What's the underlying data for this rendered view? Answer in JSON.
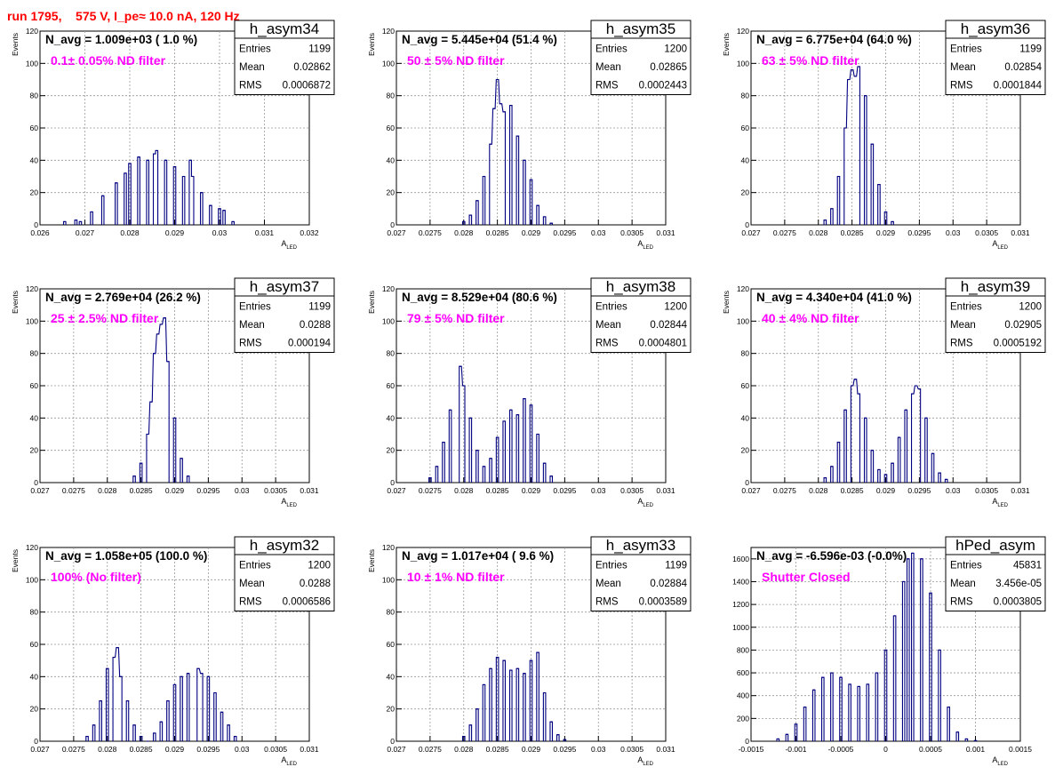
{
  "title": "run 1795,    575 V, I_pe≈ 10.0 nA, 120 Hz",
  "chart_data": [
    {
      "type": "bar",
      "name": "h_asym34",
      "stats": {
        "entries": "1199",
        "mean": "0.02862",
        "rms": "0.0006872"
      },
      "navg_text": "N_avg = 1.009e+03 ( 1.0 %)",
      "note": "0.1± 0.05% ND filter",
      "xlabel": "A_LED",
      "ylabel": "Events",
      "xlim": [
        0.026,
        0.032
      ],
      "ylim": [
        0,
        120
      ],
      "xticks": [
        0.026,
        0.027,
        0.028,
        0.029,
        0.03,
        0.031,
        0.032
      ],
      "xticklabels": [
        "0.026",
        "0.027",
        "0.028",
        "0.029",
        "0.03",
        "0.031",
        "0.032"
      ],
      "yticks": [
        0,
        20,
        40,
        60,
        80,
        100,
        120
      ],
      "bins": [
        [
          0.02655,
          2
        ],
        [
          0.0268,
          3
        ],
        [
          0.0269,
          2
        ],
        [
          0.02715,
          8
        ],
        [
          0.0274,
          18
        ],
        [
          0.0277,
          26
        ],
        [
          0.0279,
          32
        ],
        [
          0.028,
          38
        ],
        [
          0.0282,
          42
        ],
        [
          0.0284,
          40
        ],
        [
          0.02855,
          44
        ],
        [
          0.0286,
          46
        ],
        [
          0.0288,
          40
        ],
        [
          0.029,
          36
        ],
        [
          0.0292,
          30
        ],
        [
          0.02935,
          40
        ],
        [
          0.0294,
          30
        ],
        [
          0.0296,
          20
        ],
        [
          0.0298,
          12
        ],
        [
          0.03,
          10
        ],
        [
          0.0301,
          9
        ],
        [
          0.0303,
          2
        ]
      ]
    },
    {
      "type": "bar",
      "name": "h_asym35",
      "stats": {
        "entries": "1200",
        "mean": "0.02865",
        "rms": "0.0002443"
      },
      "navg_text": "N_avg = 5.445e+04 (51.4 %)",
      "note": "50 ± 5% ND filter",
      "xlabel": "A_LED",
      "ylabel": "Events",
      "xlim": [
        0.027,
        0.031
      ],
      "ylim": [
        0,
        120
      ],
      "xticks": [
        0.027,
        0.0275,
        0.028,
        0.0285,
        0.029,
        0.0295,
        0.03,
        0.0305,
        0.031
      ],
      "xticklabels": [
        "0.027",
        "0.0275",
        "0.028",
        "0.0285",
        "0.029",
        "0.0295",
        "0.03",
        "0.0305",
        "0.031"
      ],
      "yticks": [
        0,
        20,
        40,
        60,
        80,
        100,
        120
      ],
      "bins": [
        [
          0.028,
          2
        ],
        [
          0.0281,
          6
        ],
        [
          0.0282,
          15
        ],
        [
          0.0283,
          30
        ],
        [
          0.0284,
          50
        ],
        [
          0.02845,
          72
        ],
        [
          0.0285,
          90
        ],
        [
          0.02855,
          75
        ],
        [
          0.0286,
          70
        ],
        [
          0.0287,
          74
        ],
        [
          0.0288,
          55
        ],
        [
          0.0289,
          40
        ],
        [
          0.029,
          28
        ],
        [
          0.0291,
          12
        ],
        [
          0.0292,
          5
        ],
        [
          0.0293,
          1
        ]
      ]
    },
    {
      "type": "bar",
      "name": "h_asym36",
      "stats": {
        "entries": "1199",
        "mean": "0.02854",
        "rms": "0.0001844"
      },
      "navg_text": "N_avg = 6.775e+04 (64.0 %)",
      "note": "63 ± 5% ND filter",
      "xlabel": "A_LED",
      "ylabel": "Events",
      "xlim": [
        0.027,
        0.031
      ],
      "ylim": [
        0,
        120
      ],
      "xticks": [
        0.027,
        0.0275,
        0.028,
        0.0285,
        0.029,
        0.0295,
        0.03,
        0.0305,
        0.031
      ],
      "xticklabels": [
        "0.027",
        "0.0275",
        "0.028",
        "0.0285",
        "0.029",
        "0.0295",
        "0.03",
        "0.0305",
        "0.031"
      ],
      "yticks": [
        0,
        20,
        40,
        60,
        80,
        100,
        120
      ],
      "bins": [
        [
          0.0281,
          3
        ],
        [
          0.0282,
          10
        ],
        [
          0.0283,
          30
        ],
        [
          0.0284,
          60
        ],
        [
          0.02845,
          90
        ],
        [
          0.0285,
          96
        ],
        [
          0.02855,
          92
        ],
        [
          0.0286,
          98
        ],
        [
          0.0287,
          80
        ],
        [
          0.0288,
          50
        ],
        [
          0.0289,
          25
        ],
        [
          0.029,
          8
        ],
        [
          0.0291,
          2
        ]
      ]
    },
    {
      "type": "bar",
      "name": "h_asym37",
      "stats": {
        "entries": "1199",
        "mean": "0.0288",
        "rms": "0.000194"
      },
      "navg_text": "N_avg = 2.769e+04 (26.2 %)",
      "note": "25 ± 2.5% ND filter",
      "xlabel": "A_LED",
      "ylabel": "Events",
      "xlim": [
        0.027,
        0.031
      ],
      "ylim": [
        0,
        120
      ],
      "xticks": [
        0.027,
        0.0275,
        0.028,
        0.0285,
        0.029,
        0.0295,
        0.03,
        0.0305,
        0.031
      ],
      "xticklabels": [
        "0.027",
        "0.0275",
        "0.028",
        "0.0285",
        "0.029",
        "0.0295",
        "0.03",
        "0.0305",
        "0.031"
      ],
      "yticks": [
        0,
        20,
        40,
        60,
        80,
        100,
        120
      ],
      "bins": [
        [
          0.0284,
          4
        ],
        [
          0.0285,
          12
        ],
        [
          0.0286,
          30
        ],
        [
          0.02865,
          50
        ],
        [
          0.0287,
          80
        ],
        [
          0.02875,
          92
        ],
        [
          0.0288,
          98
        ],
        [
          0.02885,
          102
        ],
        [
          0.0289,
          75
        ],
        [
          0.029,
          40
        ],
        [
          0.0291,
          15
        ],
        [
          0.0292,
          4
        ]
      ]
    },
    {
      "type": "bar",
      "name": "h_asym38",
      "stats": {
        "entries": "1200",
        "mean": "0.02844",
        "rms": "0.0004801"
      },
      "navg_text": "N_avg = 8.529e+04 (80.6 %)",
      "note": "79 ± 5% ND filter",
      "xlabel": "A_LED",
      "ylabel": "Events",
      "xlim": [
        0.027,
        0.031
      ],
      "ylim": [
        0,
        120
      ],
      "xticks": [
        0.027,
        0.0275,
        0.028,
        0.0285,
        0.029,
        0.0295,
        0.03,
        0.0305,
        0.031
      ],
      "xticklabels": [
        "0.027",
        "0.0275",
        "0.028",
        "0.0285",
        "0.029",
        "0.0295",
        "0.03",
        "0.0305",
        "0.031"
      ],
      "yticks": [
        0,
        20,
        40,
        60,
        80,
        100,
        120
      ],
      "bins": [
        [
          0.0275,
          3
        ],
        [
          0.0276,
          10
        ],
        [
          0.0277,
          25
        ],
        [
          0.0278,
          45
        ],
        [
          0.02795,
          72
        ],
        [
          0.028,
          60
        ],
        [
          0.0281,
          40
        ],
        [
          0.0282,
          20
        ],
        [
          0.0283,
          10
        ],
        [
          0.0284,
          15
        ],
        [
          0.0285,
          28
        ],
        [
          0.0286,
          38
        ],
        [
          0.0287,
          45
        ],
        [
          0.0288,
          42
        ],
        [
          0.0289,
          52
        ],
        [
          0.029,
          48
        ],
        [
          0.0291,
          30
        ],
        [
          0.0292,
          12
        ],
        [
          0.0293,
          4
        ]
      ]
    },
    {
      "type": "bar",
      "name": "h_asym39",
      "stats": {
        "entries": "1200",
        "mean": "0.02905",
        "rms": "0.0005192"
      },
      "navg_text": "N_avg = 4.340e+04 (41.0 %)",
      "note": "40 ± 4% ND filter",
      "xlabel": "A_LED",
      "ylabel": "Events",
      "xlim": [
        0.027,
        0.031
      ],
      "ylim": [
        0,
        120
      ],
      "xticks": [
        0.027,
        0.0275,
        0.028,
        0.0285,
        0.029,
        0.0295,
        0.03,
        0.0305,
        0.031
      ],
      "xticklabels": [
        "0.027",
        "0.0275",
        "0.028",
        "0.0285",
        "0.029",
        "0.0295",
        "0.03",
        "0.0305",
        "0.031"
      ],
      "yticks": [
        0,
        20,
        40,
        60,
        80,
        100,
        120
      ],
      "bins": [
        [
          0.0281,
          3
        ],
        [
          0.0282,
          10
        ],
        [
          0.0283,
          25
        ],
        [
          0.0284,
          45
        ],
        [
          0.0285,
          60
        ],
        [
          0.02855,
          64
        ],
        [
          0.0286,
          55
        ],
        [
          0.0287,
          40
        ],
        [
          0.0288,
          20
        ],
        [
          0.0289,
          8
        ],
        [
          0.029,
          5
        ],
        [
          0.0291,
          12
        ],
        [
          0.0292,
          28
        ],
        [
          0.0293,
          45
        ],
        [
          0.0294,
          55
        ],
        [
          0.02945,
          60
        ],
        [
          0.0295,
          58
        ],
        [
          0.0296,
          40
        ],
        [
          0.0297,
          18
        ],
        [
          0.0298,
          6
        ],
        [
          0.0299,
          2
        ]
      ]
    },
    {
      "type": "bar",
      "name": "h_asym32",
      "stats": {
        "entries": "1200",
        "mean": "0.0288",
        "rms": "0.0006586"
      },
      "navg_text": "N_avg = 1.058e+05 (100.0 %)",
      "note": "100% (No filter)",
      "xlabel": "A_LED",
      "ylabel": "Events",
      "xlim": [
        0.027,
        0.031
      ],
      "ylim": [
        0,
        120
      ],
      "xticks": [
        0.027,
        0.0275,
        0.028,
        0.0285,
        0.029,
        0.0295,
        0.03,
        0.0305,
        0.031
      ],
      "xticklabels": [
        "0.027",
        "0.0275",
        "0.028",
        "0.0285",
        "0.029",
        "0.0295",
        "0.03",
        "0.0305",
        "0.031"
      ],
      "yticks": [
        0,
        20,
        40,
        60,
        80,
        100,
        120
      ],
      "bins": [
        [
          0.0277,
          3
        ],
        [
          0.0278,
          10
        ],
        [
          0.0279,
          25
        ],
        [
          0.028,
          45
        ],
        [
          0.0281,
          52
        ],
        [
          0.02815,
          58
        ],
        [
          0.0282,
          40
        ],
        [
          0.0283,
          25
        ],
        [
          0.0284,
          10
        ],
        [
          0.0285,
          3
        ],
        [
          0.0286,
          0
        ],
        [
          0.0287,
          5
        ],
        [
          0.0288,
          12
        ],
        [
          0.0289,
          25
        ],
        [
          0.029,
          35
        ],
        [
          0.0291,
          40
        ],
        [
          0.0292,
          42
        ],
        [
          0.02935,
          45
        ],
        [
          0.0294,
          42
        ],
        [
          0.0295,
          40
        ],
        [
          0.0296,
          30
        ],
        [
          0.0297,
          18
        ],
        [
          0.0298,
          10
        ],
        [
          0.0299,
          3
        ]
      ]
    },
    {
      "type": "bar",
      "name": "h_asym33",
      "stats": {
        "entries": "1199",
        "mean": "0.02884",
        "rms": "0.0003589"
      },
      "navg_text": "N_avg = 1.017e+04 ( 9.6 %)",
      "note": "10 ± 1% ND filter",
      "xlabel": "A_LED",
      "ylabel": "Events",
      "xlim": [
        0.027,
        0.031
      ],
      "ylim": [
        0,
        120
      ],
      "xticks": [
        0.027,
        0.0275,
        0.028,
        0.0285,
        0.029,
        0.0295,
        0.03,
        0.0305,
        0.031
      ],
      "xticklabels": [
        "0.027",
        "0.0275",
        "0.028",
        "0.0285",
        "0.029",
        "0.0295",
        "0.03",
        "0.0305",
        "0.031"
      ],
      "yticks": [
        0,
        20,
        40,
        60,
        80,
        100,
        120
      ],
      "bins": [
        [
          0.028,
          3
        ],
        [
          0.0281,
          10
        ],
        [
          0.0282,
          20
        ],
        [
          0.0283,
          35
        ],
        [
          0.0284,
          45
        ],
        [
          0.0285,
          52
        ],
        [
          0.0286,
          50
        ],
        [
          0.0287,
          44
        ],
        [
          0.0288,
          45
        ],
        [
          0.0289,
          42
        ],
        [
          0.029,
          50
        ],
        [
          0.0291,
          55
        ],
        [
          0.0292,
          30
        ],
        [
          0.0293,
          12
        ],
        [
          0.0294,
          4
        ],
        [
          0.0295,
          1
        ]
      ]
    },
    {
      "type": "bar",
      "name": "hPed_asym",
      "stats": {
        "entries": "45831",
        "mean": "3.456e-05",
        "rms": "0.0003805"
      },
      "navg_text": "N_avg = -6.596e-03 (-0.0%)",
      "note": "Shutter Closed",
      "xlabel": "A_LED",
      "ylabel": "",
      "xlim": [
        -0.0015,
        0.0015
      ],
      "ylim": [
        0,
        1700
      ],
      "xticks": [
        -0.0015,
        -0.001,
        -0.0005,
        0,
        0.0005,
        0.001,
        0.0015
      ],
      "xticklabels": [
        "-0.0015",
        "-0.001",
        "-0.0005",
        "0",
        "0.0005",
        "0.001",
        "0.0015"
      ],
      "yticks": [
        0,
        200,
        400,
        600,
        800,
        1000,
        1200,
        1400,
        1600
      ],
      "bins": [
        [
          -0.0012,
          20
        ],
        [
          -0.0011,
          60
        ],
        [
          -0.001,
          150
        ],
        [
          -0.0009,
          300
        ],
        [
          -0.0008,
          450
        ],
        [
          -0.0007,
          560
        ],
        [
          -0.0006,
          600
        ],
        [
          -0.0005,
          560
        ],
        [
          -0.0004,
          500
        ],
        [
          -0.0003,
          480
        ],
        [
          -0.0002,
          500
        ],
        [
          -0.0001,
          600
        ],
        [
          0.0,
          800
        ],
        [
          0.0001,
          1100
        ],
        [
          0.0002,
          1400
        ],
        [
          0.00025,
          1600
        ],
        [
          0.0003,
          1650
        ],
        [
          0.0004,
          1600
        ],
        [
          0.0005,
          1300
        ],
        [
          0.0006,
          800
        ],
        [
          0.0007,
          300
        ],
        [
          0.0008,
          80
        ],
        [
          0.0009,
          20
        ],
        [
          0.001,
          5
        ]
      ]
    }
  ]
}
